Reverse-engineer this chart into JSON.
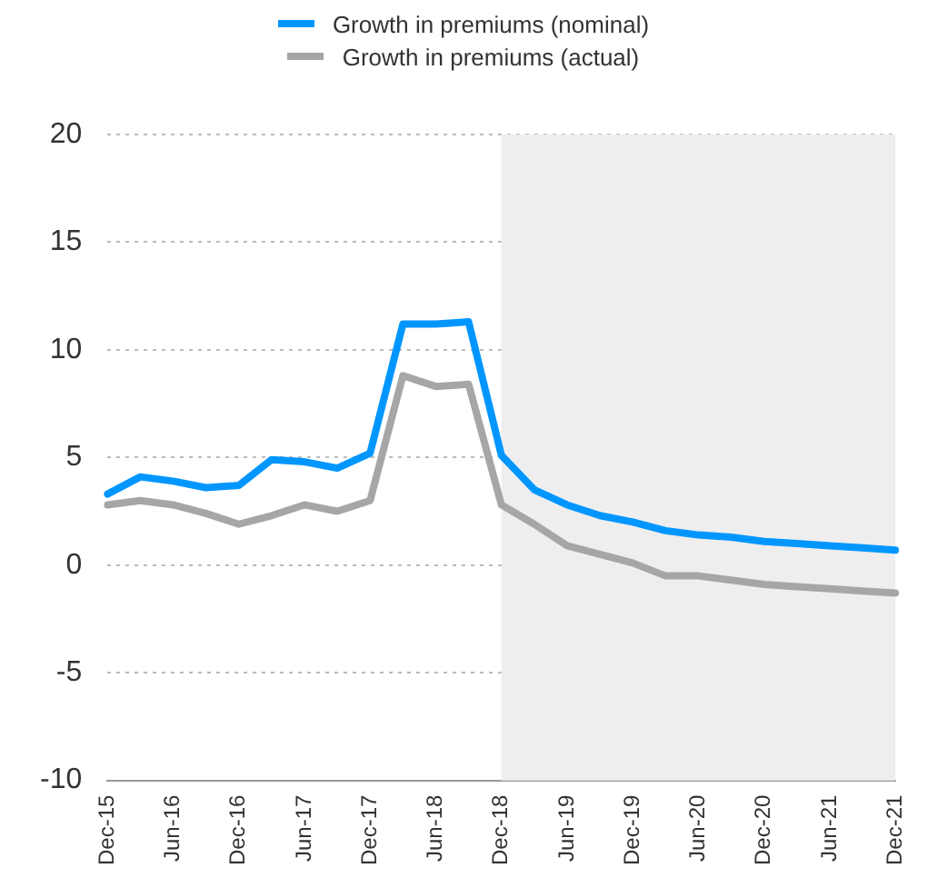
{
  "chart_data": {
    "type": "line",
    "categories": [
      "Dec-15",
      null,
      "Jun-16",
      null,
      "Dec-16",
      null,
      "Jun-17",
      null,
      "Dec-17",
      null,
      "Jun-18",
      null,
      "Dec-18",
      null,
      "Jun-19",
      null,
      "Dec-19",
      null,
      "Jun-20",
      null,
      "Dec-20",
      null,
      "Jun-21",
      null,
      "Dec-21"
    ],
    "series": [
      {
        "name": "Growth in premiums (nominal)",
        "color": "#0096ff",
        "values": [
          3.3,
          4.1,
          3.9,
          3.6,
          3.7,
          4.9,
          4.8,
          4.5,
          5.2,
          11.2,
          11.2,
          11.3,
          5.1,
          3.5,
          2.8,
          2.3,
          2.0,
          1.6,
          1.4,
          1.3,
          1.1,
          1.0,
          0.9,
          0.8,
          0.7
        ]
      },
      {
        "name": "Growth in premiums (actual)",
        "color": "#a6a6a6",
        "values": [
          2.8,
          3.0,
          2.8,
          2.4,
          1.9,
          2.3,
          2.8,
          2.5,
          3.0,
          8.8,
          8.3,
          8.4,
          2.8,
          1.9,
          0.9,
          0.5,
          0.1,
          -0.5,
          -0.5,
          -0.7,
          -0.9,
          -1.0,
          -1.1,
          -1.2,
          -1.3
        ]
      }
    ],
    "ylim": [
      -10,
      20
    ],
    "yticks": [
      -10,
      -5,
      0,
      5,
      10,
      15,
      20
    ],
    "bands": [
      {
        "axis": "x",
        "from": "Dec-18",
        "to": "Dec-21",
        "color": "#eeeeee"
      }
    ],
    "grid": "y",
    "legend": "top",
    "marker": "none",
    "line_style": "solid"
  }
}
